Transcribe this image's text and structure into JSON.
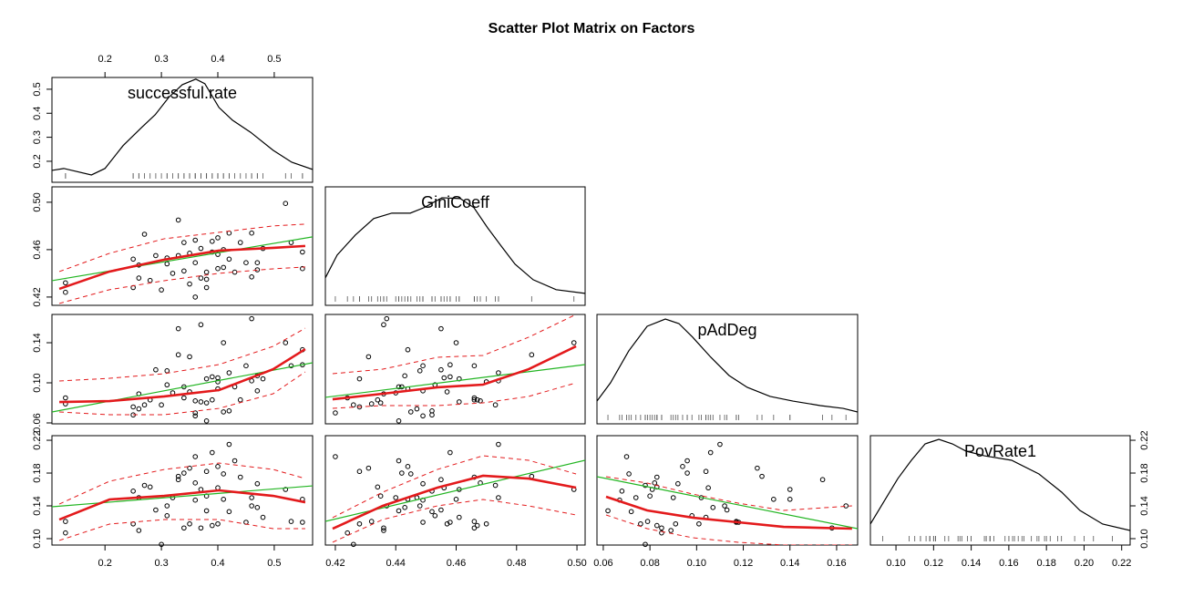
{
  "chart_data": {
    "type": "scatter",
    "title": "Scatter Plot Matrix on Factors",
    "point_color": "#000000",
    "fit_color": "#22b522",
    "smooth_color": "#e31a1c",
    "density_color": "#000000",
    "variables": [
      {
        "name": "successful.rate",
        "xlim": [
          0.106,
          0.568
        ],
        "ylim": [
          0.1125,
          0.549
        ],
        "xticks": [
          0.2,
          0.3,
          0.4,
          0.5
        ],
        "yticks": [
          0.2,
          0.3,
          0.4,
          0.5
        ],
        "values": [
          0.13,
          0.13,
          0.25,
          0.25,
          0.26,
          0.26,
          0.27,
          0.28,
          0.29,
          0.3,
          0.31,
          0.32,
          0.33,
          0.33,
          0.34,
          0.34,
          0.35,
          0.35,
          0.36,
          0.36,
          0.36,
          0.37,
          0.37,
          0.38,
          0.38,
          0.39,
          0.39,
          0.4,
          0.4,
          0.4,
          0.41,
          0.41,
          0.42,
          0.42,
          0.43,
          0.44,
          0.45,
          0.46,
          0.46,
          0.47,
          0.47,
          0.48,
          0.52,
          0.53,
          0.55,
          0.55,
          0.31,
          0.38
        ],
        "density": {
          "x": [
            0.106,
            0.127,
            0.176,
            0.2,
            0.232,
            0.265,
            0.289,
            0.313,
            0.337,
            0.361,
            0.377,
            0.402,
            0.426,
            0.458,
            0.498,
            0.531,
            0.568
          ],
          "y": [
            0.162,
            0.17,
            0.143,
            0.17,
            0.265,
            0.341,
            0.394,
            0.466,
            0.519,
            0.542,
            0.523,
            0.424,
            0.371,
            0.321,
            0.246,
            0.196,
            0.166
          ]
        }
      },
      {
        "name": "GiniCoeff",
        "xlim": [
          0.4167,
          0.5027
        ],
        "ylim": [
          0.413,
          0.513
        ],
        "xticks": [
          0.42,
          0.44,
          0.46,
          0.48,
          {
            "value": 0.5,
            "label": "0.50"
          }
        ],
        "yticks": [
          0.42,
          0.46,
          {
            "value": 0.5,
            "label": "0.50"
          }
        ],
        "values": [
          0.424,
          0.432,
          0.428,
          0.452,
          0.447,
          0.436,
          0.473,
          0.434,
          0.455,
          0.426,
          0.448,
          0.44,
          0.455,
          0.485,
          0.442,
          0.466,
          0.431,
          0.457,
          0.42,
          0.468,
          0.449,
          0.461,
          0.436,
          0.428,
          0.441,
          0.458,
          0.467,
          0.444,
          0.456,
          0.47,
          0.46,
          0.445,
          0.474,
          0.452,
          0.441,
          0.466,
          0.449,
          0.437,
          0.474,
          0.443,
          0.449,
          0.461,
          0.499,
          0.466,
          0.444,
          0.458,
          0.453,
          0.435
        ],
        "density": {
          "x": [
            0.4167,
            0.4206,
            0.4266,
            0.4327,
            0.4387,
            0.4448,
            0.4493,
            0.4553,
            0.4614,
            0.4659,
            0.4704,
            0.4749,
            0.4795,
            0.4855,
            0.4931,
            0.5027
          ],
          "y": [
            0.4362,
            0.4554,
            0.4723,
            0.4862,
            0.4908,
            0.4908,
            0.4954,
            0.5038,
            0.5031,
            0.4954,
            0.4785,
            0.4631,
            0.4477,
            0.4346,
            0.4262,
            0.4231
          ]
        },
        "fits": [
          {
            "line": {
              "x": [
                0.106,
                0.568
              ],
              "y": [
                0.4338,
                0.4708
              ]
            },
            "smooth": {
              "x": [
                0.119,
                0.208,
                0.305,
                0.402,
                0.498,
                0.555
              ],
              "y": [
                0.4269,
                0.4415,
                0.4515,
                0.4592,
                0.4615,
                0.4631
              ],
              "upper": [
                0.4415,
                0.4569,
                0.4692,
                0.4746,
                0.48,
                0.4815
              ],
              "lower": [
                0.4146,
                0.4262,
                0.4338,
                0.44,
                0.4438,
                0.4454
              ]
            }
          }
        ]
      },
      {
        "name": "pAdDeg",
        "xlim": [
          0.0573,
          0.169
        ],
        "ylim": [
          0.0591,
          0.1682
        ],
        "xticks": [
          0.06,
          0.08,
          {
            "value": 0.1,
            "label": "0.10"
          },
          0.12,
          0.14,
          0.16
        ],
        "yticks": [
          0.06,
          {
            "value": 0.1,
            "label": "0.10"
          },
          0.14
        ],
        "values": [
          0.085,
          0.079,
          0.076,
          0.068,
          0.074,
          0.089,
          0.078,
          0.083,
          0.113,
          0.078,
          0.112,
          0.09,
          0.154,
          0.128,
          0.096,
          0.085,
          0.126,
          0.091,
          0.07,
          0.082,
          0.067,
          0.081,
          0.158,
          0.104,
          0.062,
          0.106,
          0.083,
          0.094,
          0.105,
          0.101,
          0.14,
          0.071,
          0.11,
          0.072,
          0.096,
          0.083,
          0.117,
          0.164,
          0.102,
          0.107,
          0.092,
          0.104,
          0.14,
          0.117,
          0.133,
          0.118,
          0.098,
          0.08
        ],
        "density": {
          "x": [
            0.0573,
            0.0631,
            0.0709,
            0.0788,
            0.0866,
            0.0924,
            0.0983,
            0.1061,
            0.1139,
            0.1217,
            0.1315,
            0.1413,
            0.153,
            0.1628,
            0.169
          ],
          "y": [
            0.0818,
            0.1,
            0.1318,
            0.1564,
            0.1636,
            0.1591,
            0.1455,
            0.1255,
            0.1073,
            0.0955,
            0.0864,
            0.0818,
            0.0773,
            0.0745,
            0.0709
          ]
        },
        "fits": [
          {
            "line": {
              "x": [
                0.106,
                0.568
              ],
              "y": [
                0.0709,
                0.12
              ]
            },
            "smooth": {
              "x": [
                0.119,
                0.208,
                0.305,
                0.402,
                0.498,
                0.555
              ],
              "y": [
                0.0809,
                0.0818,
                0.0864,
                0.0927,
                0.1136,
                0.1336
              ],
              "upper": [
                0.1018,
                0.1045,
                0.1091,
                0.1182,
                0.1364,
                0.1545
              ],
              "lower": [
                0.0709,
                0.0682,
                0.0682,
                0.0745,
                0.0891,
                0.1109
              ]
            }
          },
          {
            "line": {
              "x": [
                0.4167,
                0.5027
              ],
              "y": [
                0.0855,
                0.1182
              ]
            },
            "smooth": {
              "x": [
                0.4191,
                0.4357,
                0.4538,
                0.4689,
                0.484,
                0.4997
              ],
              "y": [
                0.0836,
                0.0891,
                0.0955,
                0.0982,
                0.1136,
                0.1364
              ],
              "upper": [
                0.1091,
                0.1136,
                0.1255,
                0.1273,
                0.1455,
                0.1682
              ],
              "lower": [
                0.0745,
                0.0773,
                0.0773,
                0.08,
                0.0864,
                0.1
              ]
            }
          }
        ]
      },
      {
        "name": "PovRate1",
        "xlim": [
          0.0864,
          0.2245
        ],
        "ylim": [
          0.0922,
          0.2256
        ],
        "xticks": [
          {
            "value": 0.1,
            "label": "0.10"
          },
          0.12,
          0.14,
          0.16,
          0.18,
          {
            "value": 0.2,
            "label": "0.20"
          },
          0.22
        ],
        "yticks": [
          {
            "value": 0.1,
            "label": "0.10"
          },
          0.14,
          0.18,
          0.22
        ],
        "values": [
          0.107,
          0.121,
          0.118,
          0.158,
          0.15,
          0.11,
          0.165,
          0.163,
          0.135,
          0.093,
          0.14,
          0.15,
          0.172,
          0.176,
          0.18,
          0.113,
          0.186,
          0.118,
          0.2,
          0.168,
          0.147,
          0.16,
          0.113,
          0.182,
          0.134,
          0.205,
          0.116,
          0.188,
          0.162,
          0.118,
          0.148,
          0.179,
          0.215,
          0.133,
          0.195,
          0.175,
          0.12,
          0.14,
          0.15,
          0.138,
          0.167,
          0.126,
          0.16,
          0.121,
          0.148,
          0.12,
          0.128,
          0.152
        ],
        "density": {
          "x": [
            0.0864,
            0.0937,
            0.101,
            0.1082,
            0.1155,
            0.1228,
            0.13,
            0.1373,
            0.147,
            0.1615,
            0.176,
            0.1881,
            0.1978,
            0.2099,
            0.2245
          ],
          "y": [
            0.1178,
            0.1456,
            0.1733,
            0.1956,
            0.2156,
            0.2211,
            0.2156,
            0.2067,
            0.2011,
            0.1956,
            0.1789,
            0.1567,
            0.1344,
            0.1178,
            0.11
          ]
        },
        "fits": [
          {
            "line": {
              "x": [
                0.106,
                0.568
              ],
              "y": [
                0.1389,
                0.1644
              ]
            },
            "smooth": {
              "x": [
                0.119,
                0.208,
                0.305,
                0.402,
                0.498,
                0.555
              ],
              "y": [
                0.1233,
                0.1478,
                0.1522,
                0.1589,
                0.1522,
                0.1444
              ],
              "upper": [
                0.1422,
                0.17,
                0.1844,
                0.1922,
                0.1844,
                0.1733
              ],
              "lower": [
                0.0978,
                0.1178,
                0.1233,
                0.1233,
                0.1122,
                0.1122
              ]
            }
          },
          {
            "line": {
              "x": [
                0.4167,
                0.5027
              ],
              "y": [
                0.1211,
                0.1956
              ]
            },
            "smooth": {
              "x": [
                0.4191,
                0.4357,
                0.4538,
                0.4689,
                0.484,
                0.4997
              ],
              "y": [
                0.1122,
                0.14,
                0.1622,
                0.1767,
                0.1733,
                0.1622
              ],
              "upper": [
                0.1256,
                0.1567,
                0.1844,
                0.2011,
                0.1956,
                0.1789
              ],
              "lower": [
                0.0956,
                0.1233,
                0.14,
                0.1478,
                0.14,
                0.1289
              ]
            }
          },
          {
            "line": {
              "x": [
                0.0573,
                0.169
              ],
              "y": [
                0.1756,
                0.1122
              ]
            },
            "smooth": {
              "x": [
                0.0612,
                0.0788,
                0.0983,
                0.1178,
                0.1373,
                0.1666
              ],
              "y": [
                0.1511,
                0.1344,
                0.1256,
                0.12,
                0.1144,
                0.1122
              ],
              "upper": [
                0.1756,
                0.1678,
                0.1544,
                0.1433,
                0.1344,
                0.14
              ],
              "lower": [
                0.1289,
                0.1122,
                0.1011,
                0.0956,
                0.0922,
                0.0922
              ]
            }
          }
        ]
      }
    ]
  }
}
